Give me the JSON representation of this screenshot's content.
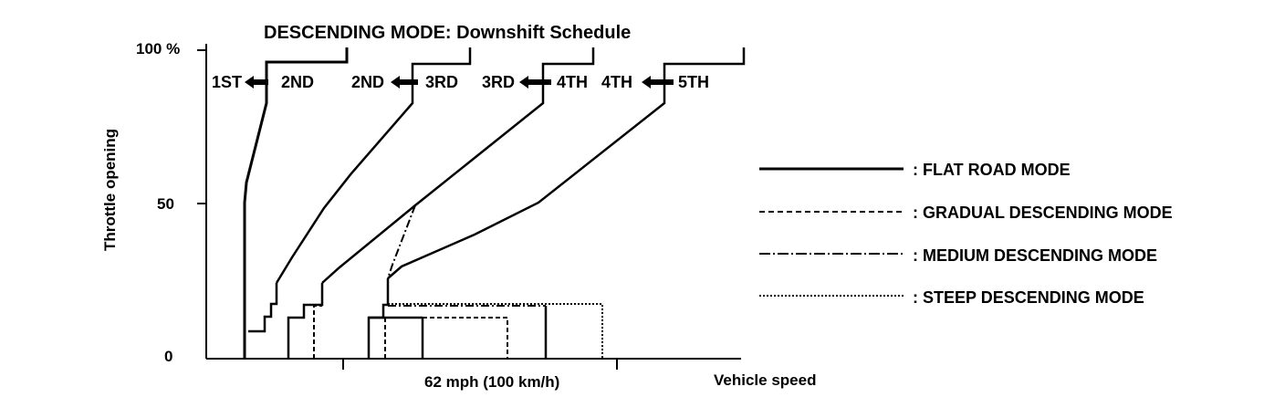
{
  "chart_data": {
    "type": "line",
    "title": "DESCENDING MODE: Downshift Schedule",
    "ylabel": "Throttle opening",
    "xlabel": "Vehicle speed",
    "y_ticks": [
      "100 %",
      "50",
      "0"
    ],
    "y_tick_values": [
      100,
      50,
      0
    ],
    "x_ticks": [
      "62 mph (100 km/h)"
    ],
    "ylim": [
      0,
      100
    ],
    "gear_labels": [
      {
        "from": "1ST",
        "to": "2ND"
      },
      {
        "from": "2ND",
        "to": "3RD"
      },
      {
        "from": "3RD",
        "to": "4TH"
      },
      {
        "from": "4TH",
        "to": "5TH"
      }
    ],
    "legend": [
      {
        "label": ": FLAT ROAD MODE",
        "style": "solid"
      },
      {
        "label": ": GRADUAL DESCENDING MODE",
        "style": "dashed"
      },
      {
        "label": ": MEDIUM DESCENDING MODE",
        "style": "dash-dot"
      },
      {
        "label": ": STEEP DESCENDING MODE",
        "style": "dotted"
      }
    ],
    "colors": {
      "ink": "#000000",
      "background": "#ffffff"
    }
  }
}
